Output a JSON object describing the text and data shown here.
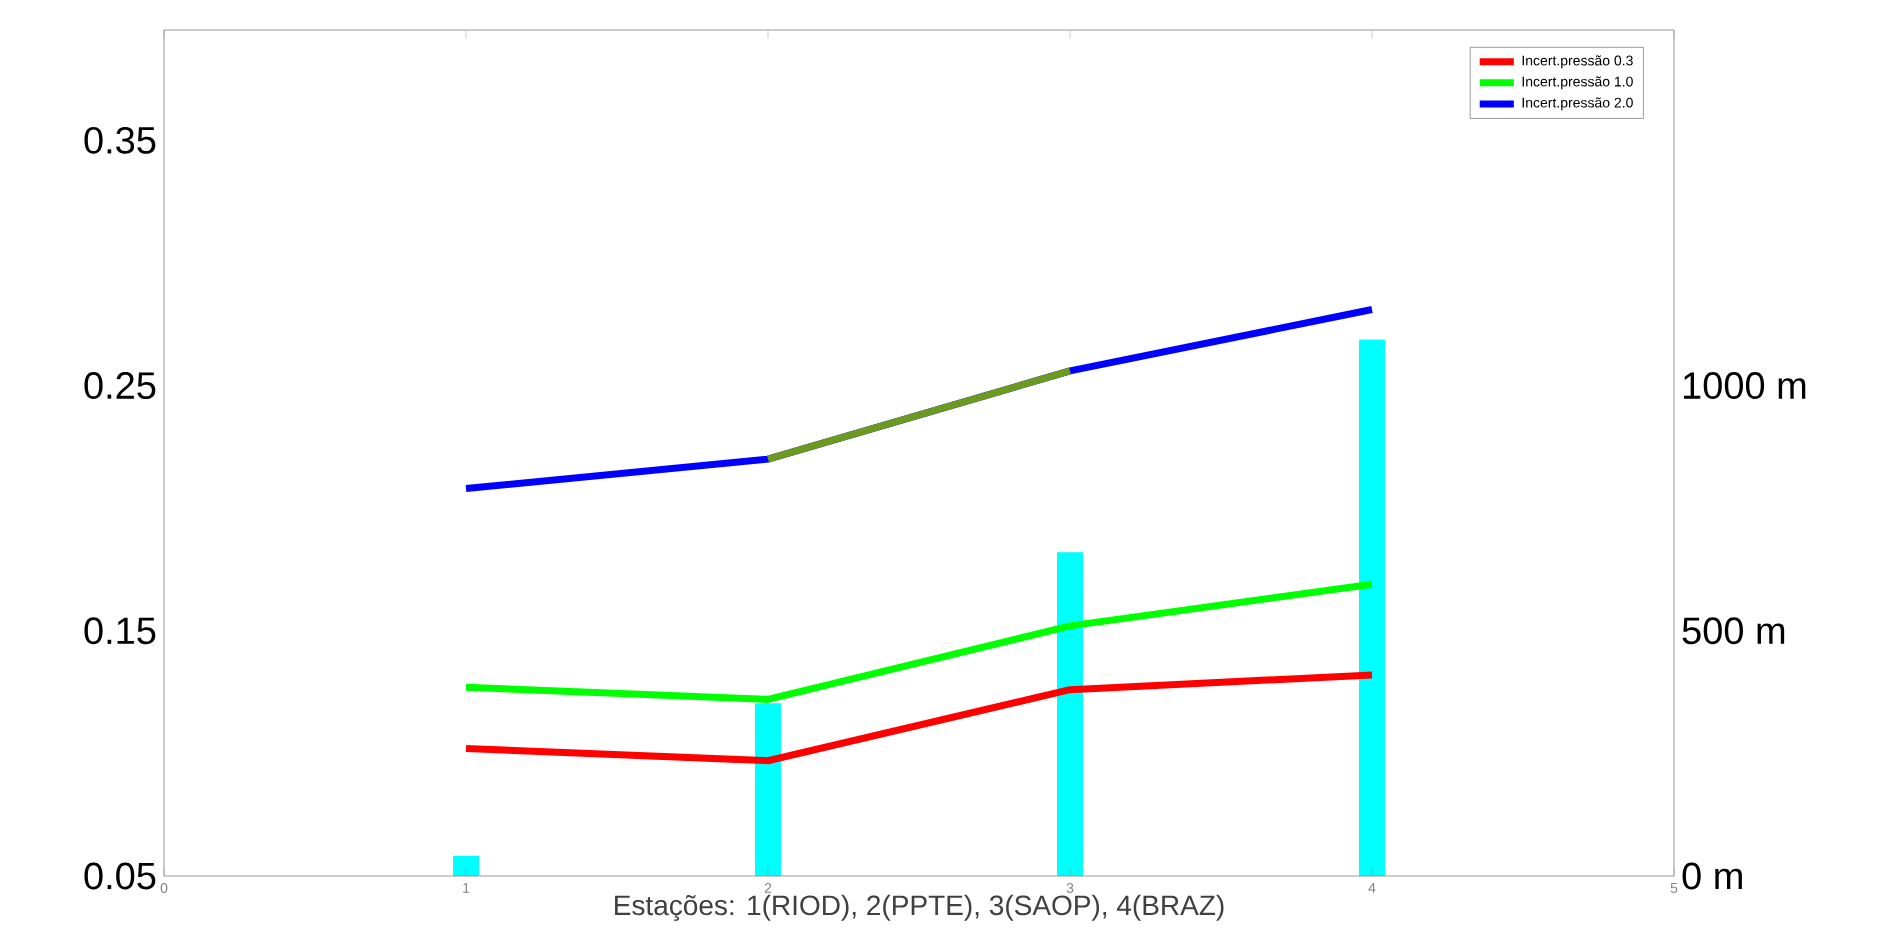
{
  "chart_data": {
    "type": "line",
    "xlabel": "Estações: 1(RIOD), 2(PPTE), 3(SAOP), 4(BRAZ)",
    "x": [
      1,
      2,
      3,
      4
    ],
    "series": [
      {
        "name": "Incert.pressão 0.3",
        "color": "#ff0000",
        "values": [
          0.102,
          0.097,
          0.126,
          0.132
        ]
      },
      {
        "name": "Incert.pressão 1.0",
        "color": "#00ff00",
        "values": [
          0.127,
          0.122,
          0.152,
          0.169
        ]
      },
      {
        "name": "Incert.pressão 2.0",
        "color": "#0000ff",
        "values": [
          0.208,
          0.22,
          0.256,
          0.281
        ]
      },
      {
        "color": "#6b9a1f",
        "values": [
          null,
          0.22,
          0.256,
          null
        ]
      },
      {
        "type": "bar",
        "axis": "y2",
        "color": "#00ffff",
        "values": [
          41,
          352,
          660,
          1094
        ]
      }
    ],
    "xlim": [
      0,
      5
    ],
    "xticks": [
      0,
      1,
      2,
      3,
      4,
      5
    ],
    "ylim": [
      0.05,
      0.395
    ],
    "yticks": [
      0.05,
      0.15,
      0.25,
      0.35
    ],
    "y2lim": [
      0,
      1725
    ],
    "y2ticks": [
      {
        "value": 0,
        "label": "0 m"
      },
      {
        "value": 500,
        "label": "500 m"
      },
      {
        "value": 1000,
        "label": "1000 m"
      }
    ],
    "legend": "top right",
    "marker": "none",
    "line_style": "solid"
  }
}
